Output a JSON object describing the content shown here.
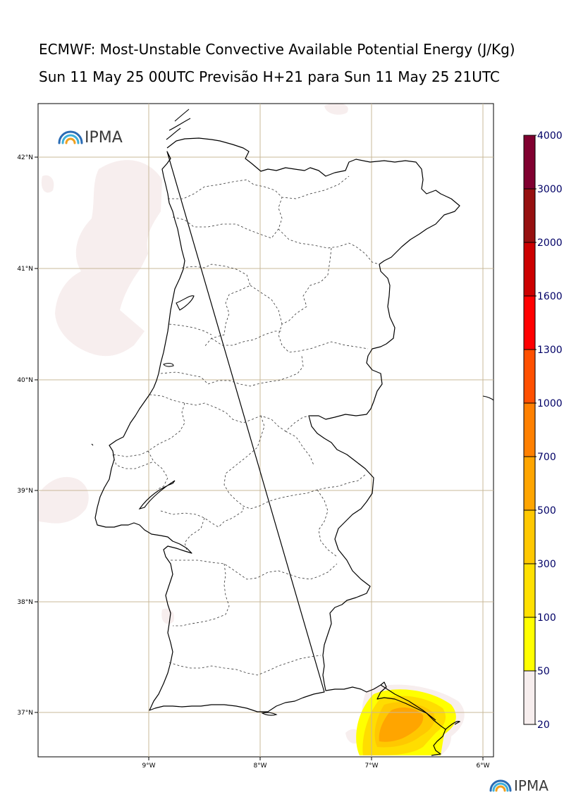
{
  "header": {
    "title": "ECMWF: Most-Unstable Convective Available Potential Energy (J/Kg)",
    "subtitle": "Sun 11 May 25 00UTC Previsão H+21 para Sun 11 May 25 21UTC"
  },
  "logo": {
    "text": "IPMA",
    "icon": "rainbow-arc-icon"
  },
  "footer_logo": {
    "text": "IPMA",
    "icon": "rainbow-arc-icon"
  },
  "map": {
    "region": "Portugal mainland",
    "lat_labels": [
      "42°N",
      "41°N",
      "40°N",
      "39°N",
      "38°N",
      "37°N"
    ],
    "lon_labels": [
      "9°W",
      "8°W",
      "7°W",
      "6°W"
    ],
    "grid": true
  },
  "colorbar": {
    "levels": [
      "20",
      "50",
      "100",
      "300",
      "500",
      "700",
      "1000",
      "1300",
      "1600",
      "2000",
      "3000",
      "4000"
    ],
    "colors": [
      "#f7eeee",
      "#ffff00",
      "#ffe000",
      "#ffc800",
      "#ffa500",
      "#ff8000",
      "#ff5000",
      "#ff0000",
      "#cc0000",
      "#961010",
      "#800030",
      "#601000"
    ]
  }
}
